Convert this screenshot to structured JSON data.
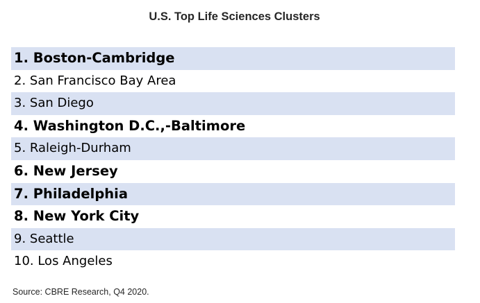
{
  "title": "U.S. Top Life Sciences Clusters",
  "clusters": [
    {
      "text": "1. Boston-Cambridge",
      "bold": true
    },
    {
      "text": "2. San Francisco Bay Area",
      "bold": false
    },
    {
      "text": "3. San Diego",
      "bold": false
    },
    {
      "text": "4. Washington D.C.,-Baltimore",
      "bold": true
    },
    {
      "text": "5. Raleigh-Durham",
      "bold": false
    },
    {
      "text": "6. New Jersey",
      "bold": true
    },
    {
      "text": "7. Philadelphia",
      "bold": true
    },
    {
      "text": "8. New York City",
      "bold": true
    },
    {
      "text": "9. Seattle",
      "bold": false
    },
    {
      "text": "10. Los Angeles",
      "bold": false
    }
  ],
  "source": "Source: CBRE Research, Q4 2020.",
  "colors": {
    "row_shade": "#d9e1f2"
  }
}
